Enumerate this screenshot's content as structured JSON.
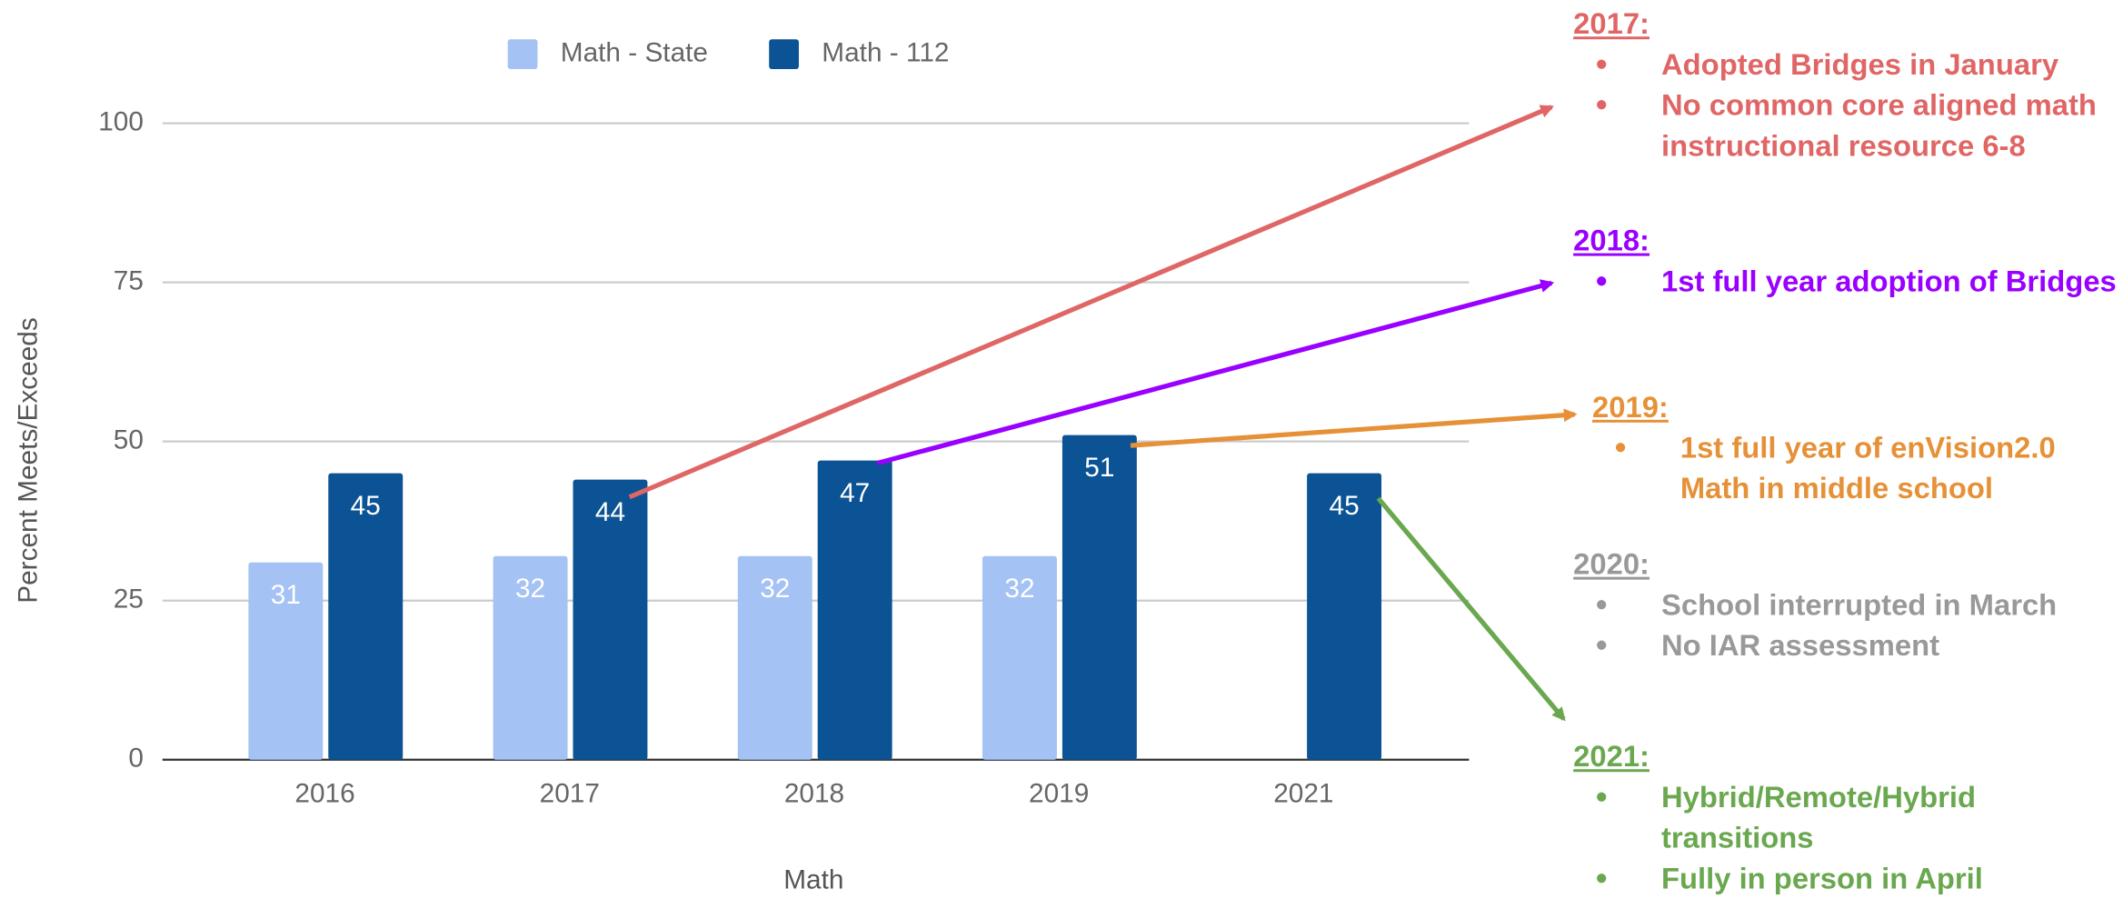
{
  "chart_data": {
    "type": "bar",
    "x_label": "Math",
    "y_label": "Percent Meets/Exceeds",
    "categories": [
      "2016",
      "2017",
      "2018",
      "2019",
      "2021"
    ],
    "series": [
      {
        "name": "Math - State",
        "color": "#a4c2f4",
        "values": [
          31,
          32,
          32,
          32,
          null
        ]
      },
      {
        "name": "Math - 112",
        "color": "#0b5394",
        "values": [
          45,
          44,
          47,
          51,
          45
        ]
      }
    ],
    "ylim": [
      0,
      100
    ],
    "yticks": [
      0,
      25,
      50,
      75,
      100
    ],
    "grid": true,
    "legend": "top",
    "annotations": [
      {
        "heading": "2017:",
        "color": "#e06666",
        "items": [
          "Adopted Bridges in January",
          "No common core aligned math instructional resource 6-8"
        ]
      },
      {
        "heading": "2018:",
        "color": "#9900ff",
        "items": [
          "1st full year adoption of Bridges"
        ]
      },
      {
        "heading": "2019:",
        "color": "#e69138",
        "items": [
          "1st full year of enVision2.0 Math in middle school"
        ]
      },
      {
        "heading": "2020:",
        "color": "#999999",
        "items": [
          "School interrupted in March",
          "No IAR assessment"
        ]
      },
      {
        "heading": "2021:",
        "color": "#6aa84f",
        "items": [
          "Hybrid/Remote/Hybrid transitions",
          "Fully in person in April"
        ]
      }
    ]
  }
}
